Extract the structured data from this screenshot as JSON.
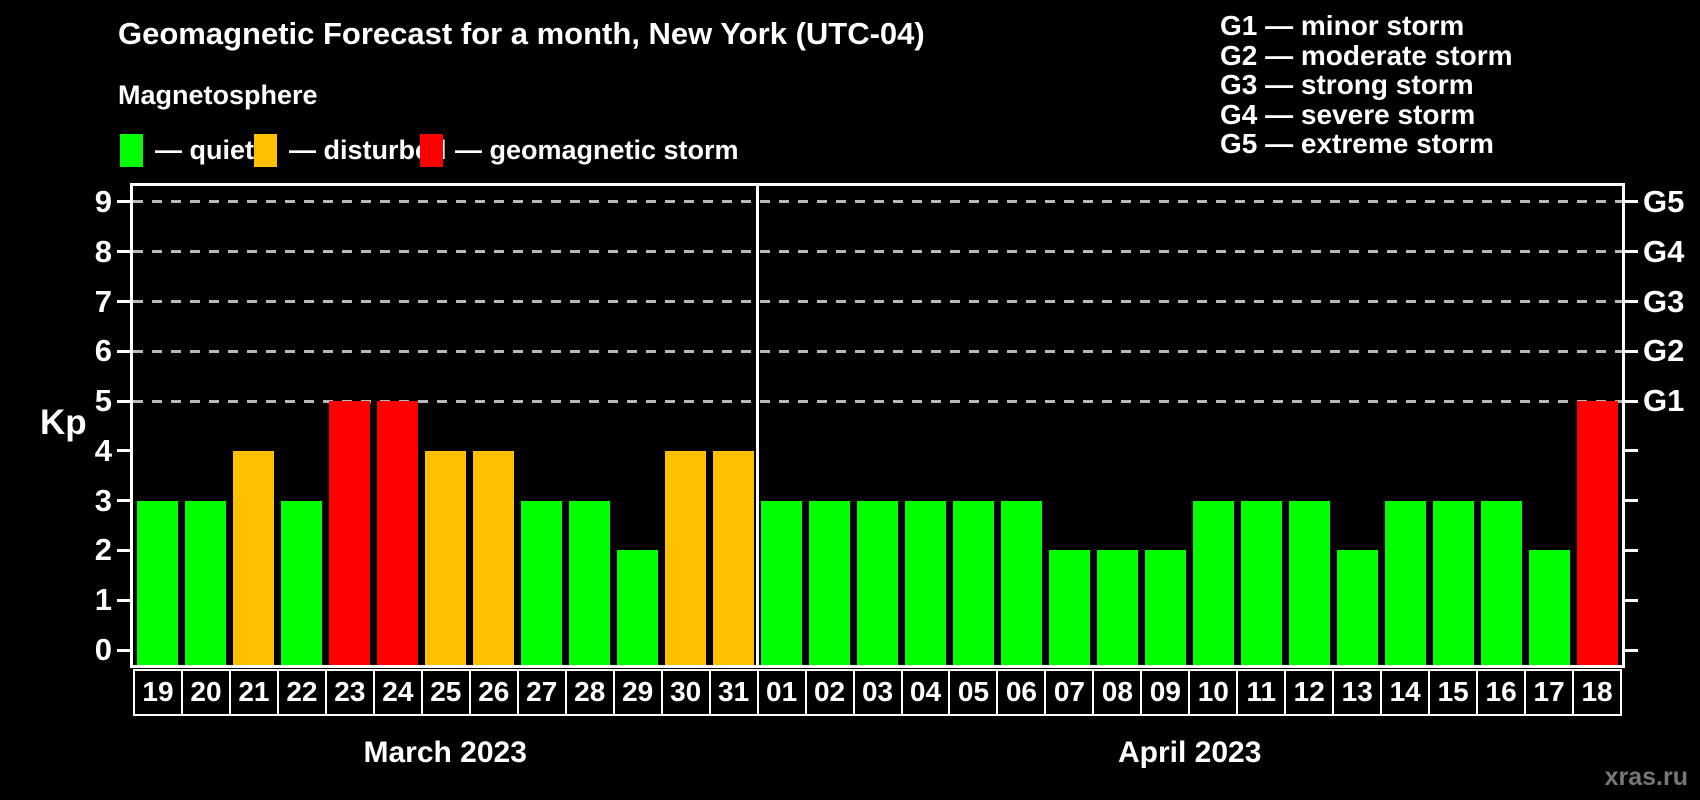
{
  "header": {
    "title": "Geomagnetic Forecast for a month, New York (UTC-04)",
    "subtitle": "Magnetosphere"
  },
  "legend": {
    "items": [
      {
        "name": "quiet",
        "label": "— quiet",
        "color": "#00ff00"
      },
      {
        "name": "disturbed",
        "label": "— disturbed",
        "color": "#ffc000"
      },
      {
        "name": "storm",
        "label": "— geomagnetic storm",
        "color": "#ff0000"
      }
    ]
  },
  "g_legend": {
    "items": [
      "G1 — minor storm",
      "G2 — moderate storm",
      "G3 — strong storm",
      "G4 — severe storm",
      "G5 — extreme storm"
    ]
  },
  "watermark": "xras.ru",
  "chart_data": {
    "type": "bar",
    "title": "Geomagnetic Forecast for a month, New York (UTC-04)",
    "ylabel": "Kp",
    "ylim": [
      0,
      9
    ],
    "yticks": [
      0,
      1,
      2,
      3,
      4,
      5,
      6,
      7,
      8,
      9
    ],
    "gridlines_at": [
      5,
      6,
      7,
      8,
      9
    ],
    "grid": true,
    "legend_position": "top",
    "right_axis": [
      {
        "kp": 9,
        "label": "G5"
      },
      {
        "kp": 8,
        "label": "G4"
      },
      {
        "kp": 7,
        "label": "G3"
      },
      {
        "kp": 6,
        "label": "G2"
      },
      {
        "kp": 5,
        "label": "G1"
      }
    ],
    "status_colors": {
      "quiet": "#00ff00",
      "disturbed": "#ffc000",
      "storm": "#ff0000"
    },
    "groups": [
      {
        "month": "March 2023",
        "bars": [
          {
            "day": "19",
            "kp": 3,
            "status": "quiet"
          },
          {
            "day": "20",
            "kp": 3,
            "status": "quiet"
          },
          {
            "day": "21",
            "kp": 4,
            "status": "disturbed"
          },
          {
            "day": "22",
            "kp": 3,
            "status": "quiet"
          },
          {
            "day": "23",
            "kp": 5,
            "status": "storm"
          },
          {
            "day": "24",
            "kp": 5,
            "status": "storm"
          },
          {
            "day": "25",
            "kp": 4,
            "status": "disturbed"
          },
          {
            "day": "26",
            "kp": 4,
            "status": "disturbed"
          },
          {
            "day": "27",
            "kp": 3,
            "status": "quiet"
          },
          {
            "day": "28",
            "kp": 3,
            "status": "quiet"
          },
          {
            "day": "29",
            "kp": 2,
            "status": "quiet"
          },
          {
            "day": "30",
            "kp": 4,
            "status": "disturbed"
          },
          {
            "day": "31",
            "kp": 4,
            "status": "disturbed"
          }
        ]
      },
      {
        "month": "April 2023",
        "bars": [
          {
            "day": "01",
            "kp": 3,
            "status": "quiet"
          },
          {
            "day": "02",
            "kp": 3,
            "status": "quiet"
          },
          {
            "day": "03",
            "kp": 3,
            "status": "quiet"
          },
          {
            "day": "04",
            "kp": 3,
            "status": "quiet"
          },
          {
            "day": "05",
            "kp": 3,
            "status": "quiet"
          },
          {
            "day": "06",
            "kp": 3,
            "status": "quiet"
          },
          {
            "day": "07",
            "kp": 2,
            "status": "quiet"
          },
          {
            "day": "08",
            "kp": 2,
            "status": "quiet"
          },
          {
            "day": "09",
            "kp": 2,
            "status": "quiet"
          },
          {
            "day": "10",
            "kp": 3,
            "status": "quiet"
          },
          {
            "day": "11",
            "kp": 3,
            "status": "quiet"
          },
          {
            "day": "12",
            "kp": 3,
            "status": "quiet"
          },
          {
            "day": "13",
            "kp": 2,
            "status": "quiet"
          },
          {
            "day": "14",
            "kp": 3,
            "status": "quiet"
          },
          {
            "day": "15",
            "kp": 3,
            "status": "quiet"
          },
          {
            "day": "16",
            "kp": 3,
            "status": "quiet"
          },
          {
            "day": "17",
            "kp": 2,
            "status": "quiet"
          },
          {
            "day": "18",
            "kp": 5,
            "status": "storm"
          }
        ]
      }
    ]
  }
}
